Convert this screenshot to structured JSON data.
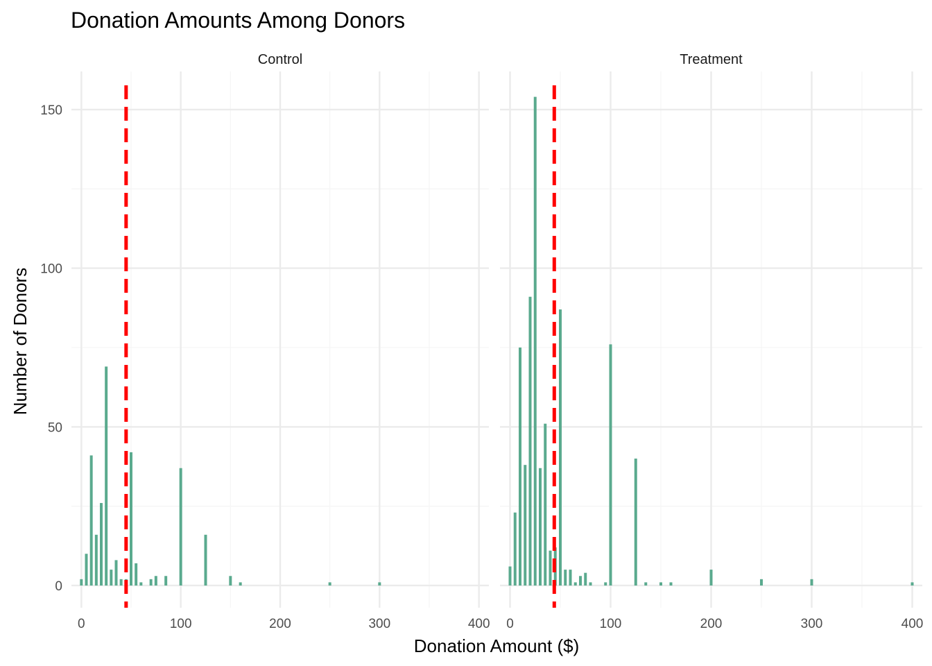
{
  "title": "Donation Amounts Among Donors",
  "colors": {
    "bar": "#5aaa8e",
    "mean_line": "#ff0000",
    "grid_major": "#ebebeb",
    "grid_minor": "#f5f5f5",
    "text": "#4d4d4d"
  },
  "chart_data": {
    "type": "bar",
    "xlabel": "Donation Amount ($)",
    "ylabel": "Number of Donors",
    "xlim": [
      -10,
      410
    ],
    "ylim": [
      -7,
      162
    ],
    "x_ticks": [
      "0",
      "100",
      "200",
      "300",
      "400"
    ],
    "y_ticks": [
      "0",
      "50",
      "100",
      "150"
    ],
    "grid": true,
    "facets": [
      {
        "name": "Control",
        "mean": 45,
        "bins": [
          {
            "x": 0,
            "count": 2
          },
          {
            "x": 5,
            "count": 10
          },
          {
            "x": 10,
            "count": 41
          },
          {
            "x": 15,
            "count": 16
          },
          {
            "x": 20,
            "count": 26
          },
          {
            "x": 25,
            "count": 69
          },
          {
            "x": 30,
            "count": 5
          },
          {
            "x": 35,
            "count": 8
          },
          {
            "x": 40,
            "count": 2
          },
          {
            "x": 45,
            "count": 2
          },
          {
            "x": 50,
            "count": 42
          },
          {
            "x": 55,
            "count": 7
          },
          {
            "x": 60,
            "count": 1
          },
          {
            "x": 70,
            "count": 2
          },
          {
            "x": 75,
            "count": 3
          },
          {
            "x": 85,
            "count": 3
          },
          {
            "x": 100,
            "count": 37
          },
          {
            "x": 125,
            "count": 16
          },
          {
            "x": 150,
            "count": 3
          },
          {
            "x": 160,
            "count": 1
          },
          {
            "x": 250,
            "count": 1
          },
          {
            "x": 300,
            "count": 1
          }
        ]
      },
      {
        "name": "Treatment",
        "mean": 44,
        "bins": [
          {
            "x": 0,
            "count": 6
          },
          {
            "x": 5,
            "count": 23
          },
          {
            "x": 10,
            "count": 75
          },
          {
            "x": 15,
            "count": 38
          },
          {
            "x": 20,
            "count": 91
          },
          {
            "x": 25,
            "count": 154
          },
          {
            "x": 30,
            "count": 37
          },
          {
            "x": 35,
            "count": 51
          },
          {
            "x": 40,
            "count": 11
          },
          {
            "x": 45,
            "count": 12
          },
          {
            "x": 50,
            "count": 87
          },
          {
            "x": 55,
            "count": 5
          },
          {
            "x": 60,
            "count": 5
          },
          {
            "x": 65,
            "count": 1
          },
          {
            "x": 70,
            "count": 3
          },
          {
            "x": 75,
            "count": 4
          },
          {
            "x": 80,
            "count": 1
          },
          {
            "x": 95,
            "count": 1
          },
          {
            "x": 100,
            "count": 76
          },
          {
            "x": 125,
            "count": 40
          },
          {
            "x": 135,
            "count": 1
          },
          {
            "x": 150,
            "count": 1
          },
          {
            "x": 160,
            "count": 1
          },
          {
            "x": 200,
            "count": 5
          },
          {
            "x": 250,
            "count": 2
          },
          {
            "x": 300,
            "count": 2
          },
          {
            "x": 400,
            "count": 1
          }
        ]
      }
    ]
  }
}
